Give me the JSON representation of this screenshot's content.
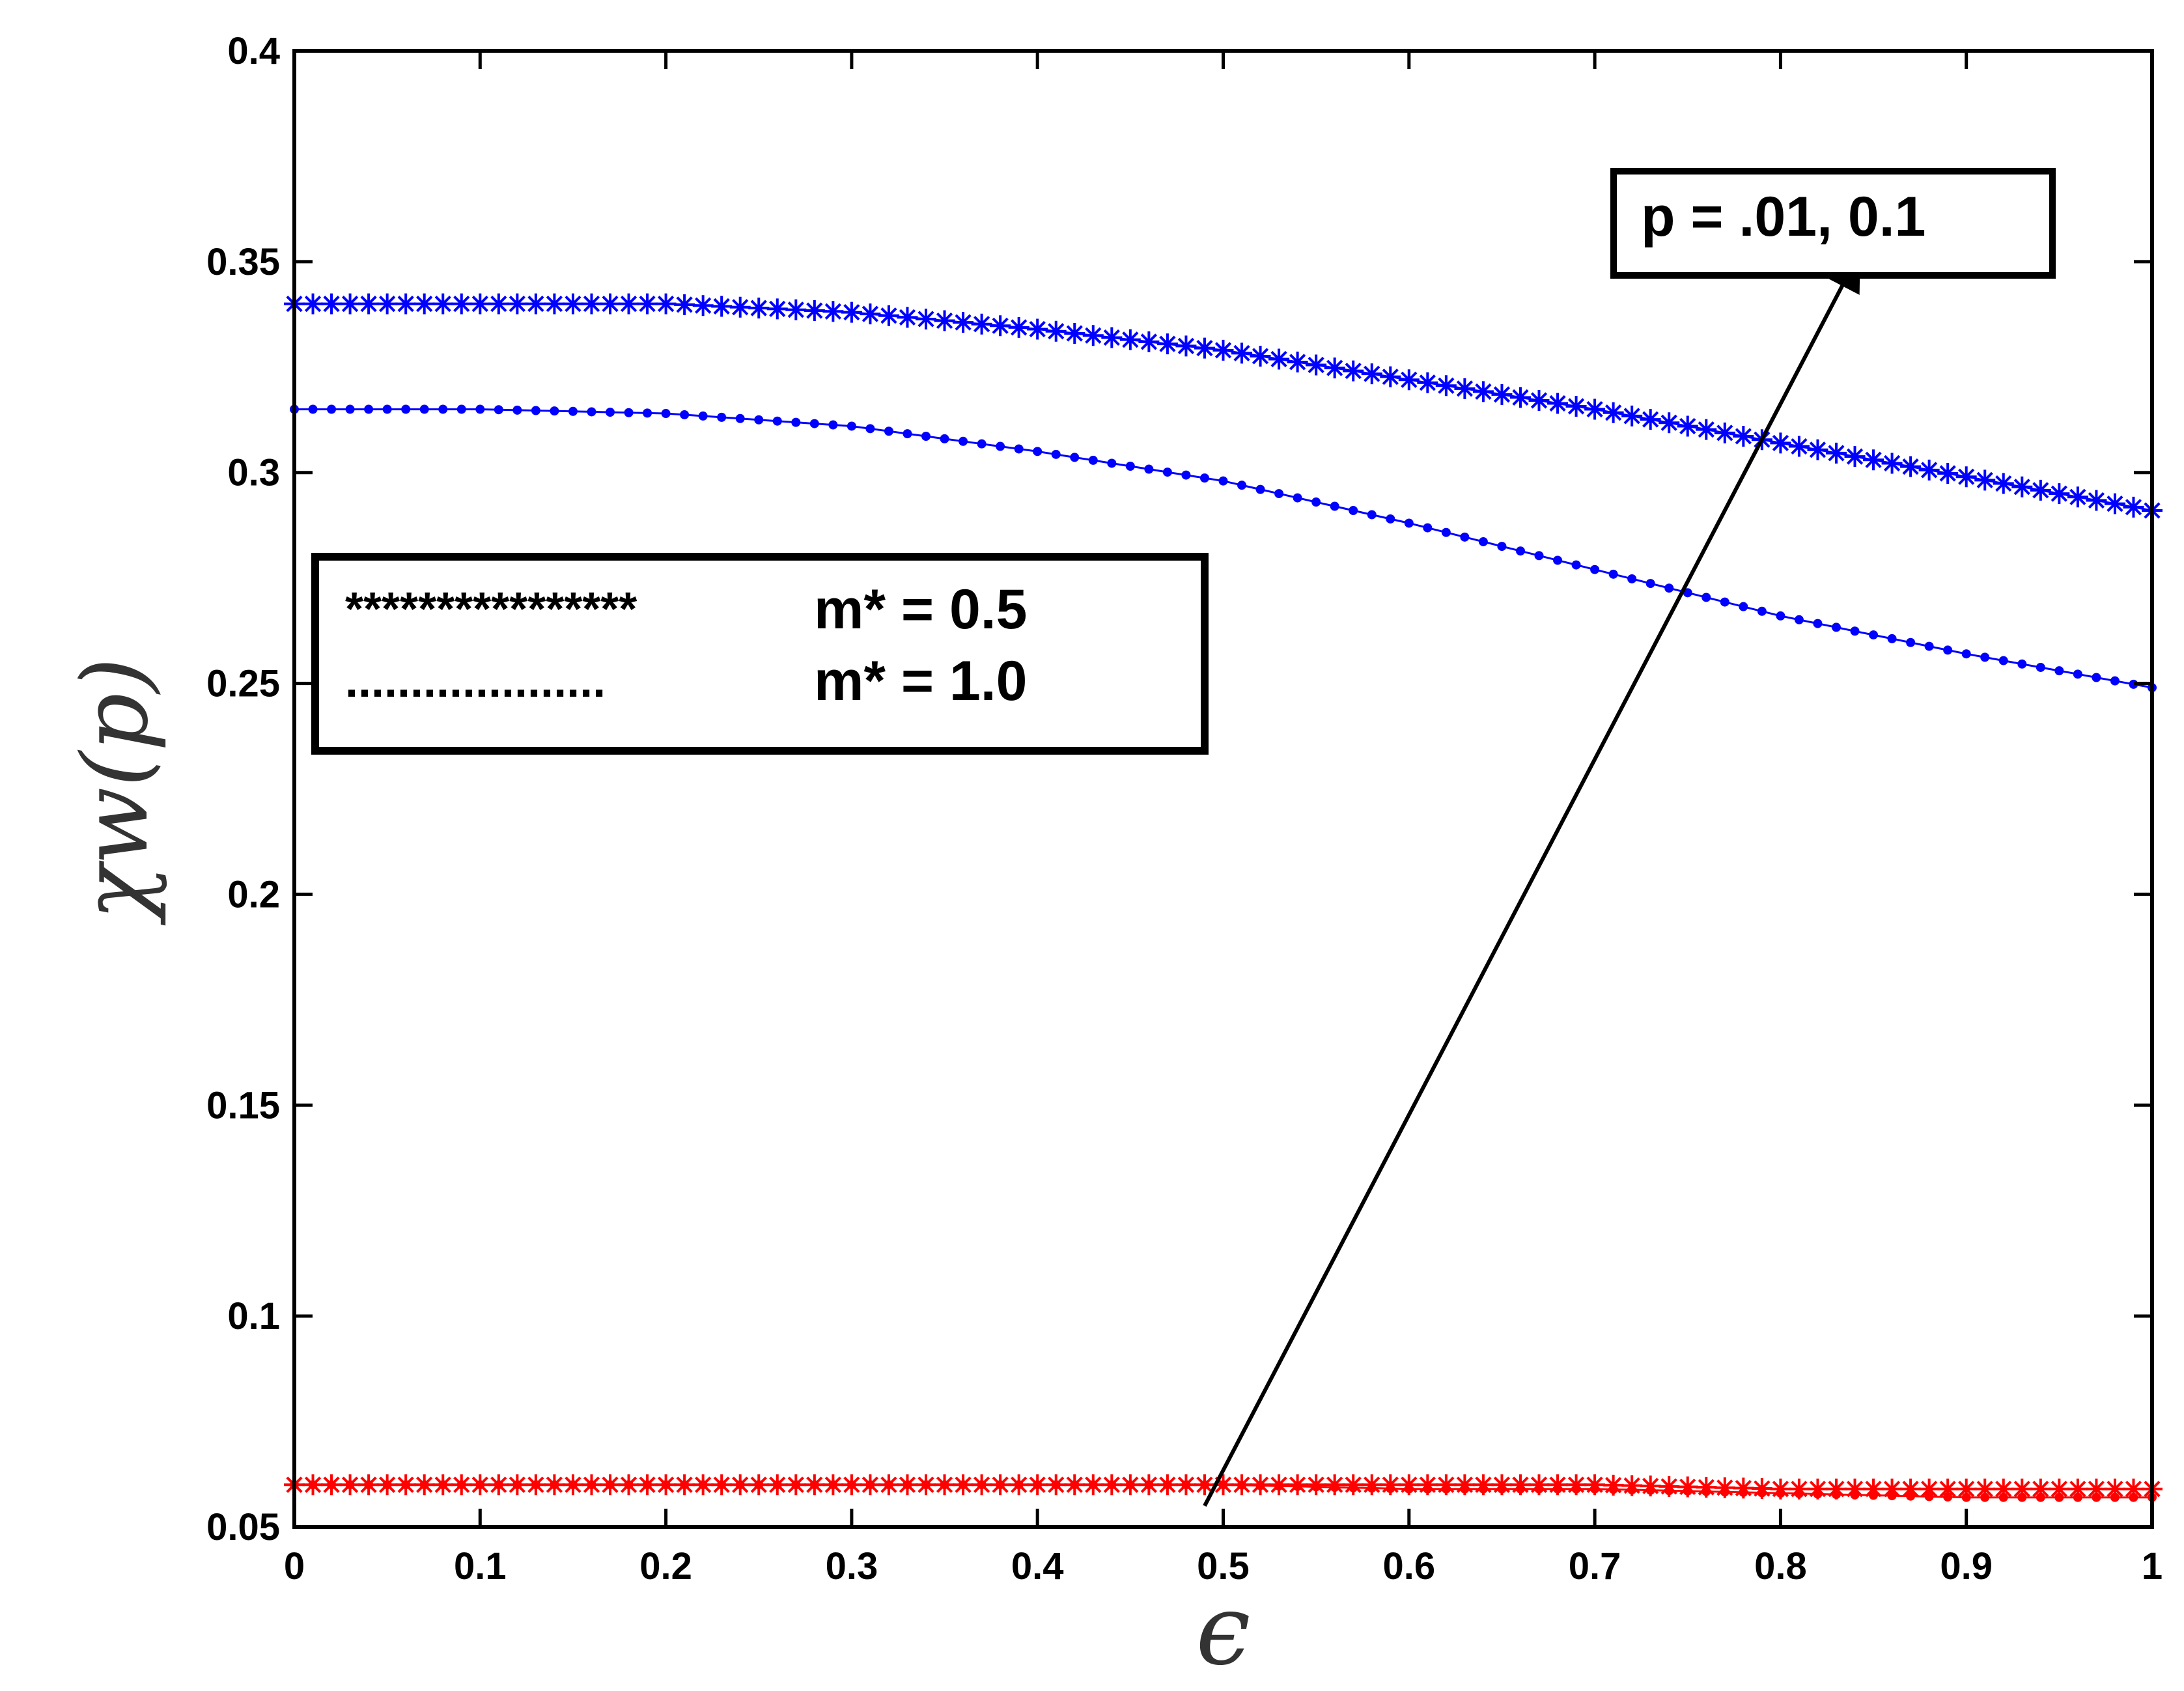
{
  "chart_data": {
    "type": "line",
    "title": "",
    "xlabel": "ϵ",
    "ylabel": "χw(p)",
    "xlim": [
      0,
      1
    ],
    "ylim": [
      0.05,
      0.4
    ],
    "xticks": [
      "0",
      "0.1",
      "0.2",
      "0.3",
      "0.4",
      "0.5",
      "0.6",
      "0.7",
      "0.8",
      "0.9",
      "1"
    ],
    "yticks": [
      "0.05",
      "0.1",
      "0.15",
      "0.2",
      "0.25",
      "0.3",
      "0.35",
      "0.4"
    ],
    "grid": false,
    "colors": {
      "blue": "#0000ff",
      "red": "#ff0000",
      "frame": "#000000"
    },
    "legend": {
      "placement": "center-left",
      "entries": [
        {
          "marks": "****************",
          "label": "m* = 0.5",
          "marker": "star"
        },
        {
          "marks": "....................",
          "label": "m* = 1.0",
          "marker": "dot"
        }
      ]
    },
    "annotation": {
      "text": "p = .01, 0.1",
      "arrow_from": [
        0.49,
        0.055
      ],
      "arrow_to": [
        0.84,
        0.35
      ]
    },
    "series": [
      {
        "marker": "star",
        "color": "#0000ff",
        "x": [
          0,
          0.1,
          0.2,
          0.3,
          0.4,
          0.5,
          0.6,
          0.7,
          0.8,
          0.9,
          1.0
        ],
        "y": [
          0.34,
          0.34,
          0.34,
          0.338,
          0.334,
          0.329,
          0.322,
          0.315,
          0.307,
          0.299,
          0.291
        ]
      },
      {
        "marker": "dot",
        "color": "#0000ff",
        "x": [
          0,
          0.1,
          0.2,
          0.3,
          0.4,
          0.5,
          0.6,
          0.7,
          0.8,
          0.9,
          1.0
        ],
        "y": [
          0.315,
          0.315,
          0.314,
          0.311,
          0.305,
          0.298,
          0.288,
          0.277,
          0.266,
          0.257,
          0.249
        ]
      },
      {
        "marker": "star",
        "color": "#ff0000",
        "x": [
          0,
          0.1,
          0.2,
          0.3,
          0.4,
          0.5,
          0.6,
          0.7,
          0.8,
          0.9,
          1.0
        ],
        "y": [
          0.06,
          0.06,
          0.06,
          0.06,
          0.06,
          0.06,
          0.06,
          0.06,
          0.059,
          0.059,
          0.059
        ]
      },
      {
        "marker": "dot",
        "color": "#ff0000",
        "x": [
          0,
          0.1,
          0.2,
          0.3,
          0.4,
          0.5,
          0.6,
          0.7,
          0.8,
          0.9,
          1.0
        ],
        "y": [
          0.06,
          0.06,
          0.06,
          0.06,
          0.06,
          0.06,
          0.059,
          0.059,
          0.058,
          0.057,
          0.057
        ]
      }
    ]
  }
}
